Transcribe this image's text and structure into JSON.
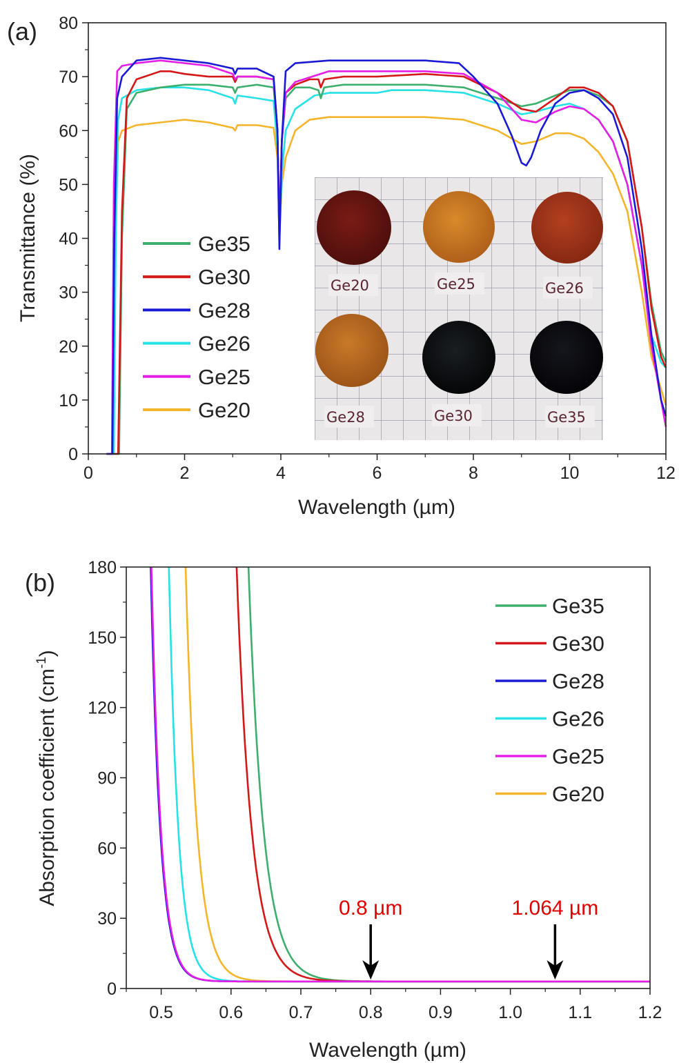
{
  "colors": {
    "Ge35": "#3daf6c",
    "Ge30": "#d41717",
    "Ge28": "#1a1ad6",
    "Ge26": "#26e2e6",
    "Ge25": "#e51ee6",
    "Ge20": "#f4b52a",
    "annotation": "#e00000"
  },
  "chart_data": [
    {
      "panel": "(a)",
      "type": "line",
      "xlabel": "Wavelength (µm)",
      "ylabel": "Transmittance (%)",
      "xlim": [
        0,
        12
      ],
      "ylim": [
        0,
        80
      ],
      "xticks": [
        "0",
        "2",
        "4",
        "6",
        "8",
        "10",
        "12"
      ],
      "yticks": [
        "0",
        "10",
        "20",
        "30",
        "40",
        "50",
        "60",
        "70",
        "80"
      ],
      "legend": "center-left",
      "grid": false,
      "series": [
        {
          "name": "Ge35",
          "x": [
            0.64,
            0.7,
            0.8,
            1.0,
            1.5,
            2.0,
            2.5,
            3.0,
            3.05,
            3.1,
            3.5,
            3.85,
            3.93,
            3.97,
            4.02,
            4.1,
            4.3,
            4.6,
            4.78,
            4.83,
            4.9,
            5.3,
            6,
            7,
            7.8,
            8.5,
            9.0,
            9.3,
            9.7,
            10,
            10.3,
            10.6,
            10.9,
            11.2,
            11.5,
            11.7,
            11.9,
            12
          ],
          "y": [
            0,
            40,
            64,
            67,
            68,
            68.5,
            68.5,
            68,
            67,
            68,
            68.5,
            68,
            60,
            42,
            58,
            66,
            68,
            68,
            67.5,
            66,
            68,
            68.5,
            68.5,
            68.5,
            68,
            66,
            64.5,
            65,
            66.5,
            67.5,
            67.5,
            66.5,
            64.5,
            58,
            42,
            28,
            19,
            17
          ]
        },
        {
          "name": "Ge30",
          "x": [
            0.62,
            0.7,
            0.8,
            1.0,
            1.5,
            1.7,
            2.0,
            2.5,
            3.0,
            3.05,
            3.1,
            3.5,
            3.85,
            3.93,
            3.97,
            4.02,
            4.1,
            4.3,
            4.6,
            4.78,
            4.83,
            4.9,
            5.3,
            6,
            7,
            7.8,
            8.5,
            9.0,
            9.3,
            9.7,
            10,
            10.3,
            10.6,
            10.9,
            11.2,
            11.5,
            11.7,
            11.9,
            12
          ],
          "y": [
            0,
            45,
            66,
            69.5,
            71,
            71,
            70.5,
            70,
            70,
            69,
            70,
            70,
            69.5,
            60,
            42,
            58,
            67,
            68.5,
            69.5,
            69.5,
            68,
            69.5,
            70,
            70,
            70.5,
            70,
            67,
            64,
            63.5,
            66,
            68,
            68,
            67,
            64.5,
            58,
            42,
            27,
            18,
            16
          ]
        },
        {
          "name": "Ge28",
          "x": [
            0.5,
            0.54,
            0.6,
            0.7,
            1.0,
            1.5,
            2.0,
            2.5,
            3.0,
            3.05,
            3.1,
            3.5,
            3.85,
            3.93,
            3.97,
            4.02,
            4.1,
            4.3,
            5,
            6,
            7,
            7.7,
            8.0,
            8.5,
            8.8,
            9.0,
            9.1,
            9.2,
            9.4,
            9.7,
            10,
            10.3,
            10.6,
            10.9,
            11.2,
            11.5,
            11.7,
            11.9,
            12
          ],
          "y": [
            0,
            40,
            66,
            70,
            73,
            73.5,
            73,
            72.5,
            71.5,
            70.5,
            71.5,
            71.5,
            70,
            60,
            38,
            58,
            71,
            72.5,
            73,
            73,
            73,
            72.5,
            70,
            65,
            59,
            54,
            53.5,
            55,
            60,
            65,
            67,
            67.5,
            66,
            63,
            55,
            38,
            22,
            10,
            7
          ]
        },
        {
          "name": "Ge26",
          "x": [
            0.53,
            0.57,
            0.62,
            0.7,
            1.0,
            1.5,
            2.0,
            2.5,
            3.0,
            3.05,
            3.1,
            3.5,
            3.85,
            3.93,
            3.97,
            4.02,
            4.1,
            4.3,
            4.7,
            5,
            6,
            6.3,
            7,
            7.8,
            8.5,
            9.0,
            9.3,
            9.7,
            10,
            10.3,
            10.6,
            10.9,
            11.2,
            11.5,
            11.7,
            11.9,
            12
          ],
          "y": [
            0,
            40,
            62,
            66,
            67.5,
            68,
            68,
            67.5,
            66,
            65,
            66.5,
            66,
            65.5,
            57,
            40,
            52,
            60,
            64,
            66.5,
            67,
            67,
            67.5,
            67.5,
            67,
            65,
            63,
            63.5,
            64.5,
            65,
            64,
            62,
            58,
            50,
            35,
            22,
            17,
            16
          ]
        },
        {
          "name": "Ge25",
          "x": [
            0.49,
            0.53,
            0.6,
            0.7,
            1.0,
            1.5,
            2.0,
            2.5,
            3.0,
            3.05,
            3.1,
            3.5,
            3.85,
            3.93,
            3.97,
            4.02,
            4.1,
            4.3,
            5,
            6,
            7,
            7.8,
            8.5,
            9.0,
            9.3,
            9.7,
            10,
            10.3,
            10.6,
            10.9,
            11.2,
            11.5,
            11.7,
            11.9,
            12
          ],
          "y": [
            0,
            50,
            71,
            72,
            72.5,
            73,
            72.5,
            72,
            70.5,
            69.5,
            70,
            70,
            69.5,
            60,
            39,
            58,
            67,
            69,
            71,
            71,
            71,
            70.5,
            67,
            62,
            61.5,
            63.5,
            64.5,
            64,
            62,
            58,
            50,
            35,
            20,
            10,
            5
          ]
        },
        {
          "name": "Ge20",
          "x": [
            0.51,
            0.56,
            0.62,
            0.7,
            1.0,
            1.5,
            2.0,
            2.5,
            3.0,
            3.05,
            3.1,
            3.5,
            3.85,
            3.93,
            3.97,
            4.02,
            4.1,
            4.3,
            4.6,
            5,
            6,
            7,
            7.8,
            8.5,
            9.0,
            9.3,
            9.7,
            10,
            10.3,
            10.6,
            10.9,
            11.2,
            11.5,
            11.7,
            11.9,
            12
          ],
          "y": [
            0,
            40,
            58,
            60,
            61,
            61.5,
            62,
            61.5,
            60.5,
            60,
            61,
            61,
            60.5,
            55,
            40,
            50,
            55,
            60,
            62,
            62.5,
            62.5,
            62.5,
            62,
            60,
            57.5,
            58,
            59.5,
            59.5,
            58.5,
            56,
            52,
            45,
            30,
            18,
            12,
            9
          ]
        }
      ],
      "inset_samples": [
        "Ge20",
        "Ge25",
        "Ge26",
        "Ge28",
        "Ge30",
        "Ge35"
      ]
    },
    {
      "panel": "(b)",
      "type": "line",
      "xlabel": "Wavelength (µm)",
      "ylabel_main": "Absorption coefficient (cm",
      "ylabel_sup": "-1",
      "ylabel_end": ")",
      "xlim": [
        0.45,
        1.2
      ],
      "ylim": [
        0,
        180
      ],
      "xticks": [
        0.5,
        0.6,
        0.7,
        0.8,
        0.9,
        1.0,
        1.1,
        1.2
      ],
      "xtick_labels": [
        "0.5",
        "0.6",
        "0.7",
        "0.8",
        "0.9",
        "1.0",
        "1.1",
        "1.2"
      ],
      "yticks": [
        0,
        30,
        60,
        90,
        120,
        150,
        180
      ],
      "ytick_labels": [
        "0",
        "30",
        "60",
        "90",
        "120",
        "150",
        "180"
      ],
      "legend": "top-right",
      "grid": false,
      "baseline": 3,
      "series": [
        {
          "name": "Ge35",
          "x0": 0.625,
          "decay": 0.0215
        },
        {
          "name": "Ge30",
          "x0": 0.608,
          "decay": 0.0215
        },
        {
          "name": "Ge28",
          "x0": 0.485,
          "decay": 0.0135
        },
        {
          "name": "Ge26",
          "x0": 0.511,
          "decay": 0.0135
        },
        {
          "name": "Ge25",
          "x0": 0.486,
          "decay": 0.0135
        },
        {
          "name": "Ge20",
          "x0": 0.535,
          "decay": 0.0165
        }
      ],
      "annotations": [
        {
          "text": "0.8 µm",
          "x": 0.8
        },
        {
          "text": "1.064 µm",
          "x": 1.064
        }
      ]
    }
  ]
}
